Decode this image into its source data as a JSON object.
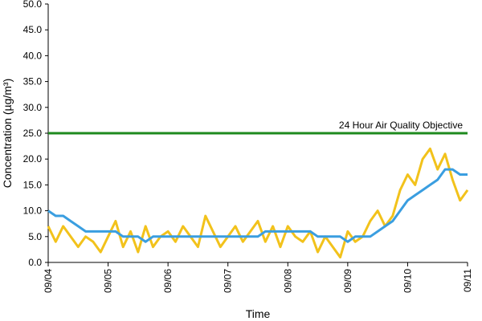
{
  "chart_data": {
    "type": "line",
    "y_label": "Concentration (µg/m³)",
    "x_label": "Time",
    "categories": [
      "09/04",
      null,
      null,
      null,
      null,
      null,
      null,
      null,
      "09/05",
      null,
      null,
      null,
      null,
      null,
      null,
      null,
      "09/06",
      null,
      null,
      null,
      null,
      null,
      null,
      null,
      "09/07",
      null,
      null,
      null,
      null,
      null,
      null,
      null,
      "09/08",
      null,
      null,
      null,
      null,
      null,
      null,
      null,
      "09/09",
      null,
      null,
      null,
      null,
      null,
      null,
      null,
      "09/10",
      null,
      null,
      null,
      null,
      null,
      null,
      null,
      "09/11"
    ],
    "series": [
      {
        "color": "#f2c21b",
        "values": [
          7,
          4,
          7,
          5,
          3,
          5,
          4,
          2,
          5,
          8,
          3,
          6,
          2,
          7,
          3,
          5,
          6,
          4,
          7,
          5,
          3,
          9,
          6,
          3,
          5,
          7,
          4,
          6,
          8,
          4,
          7,
          3,
          7,
          5,
          4,
          6,
          2,
          5,
          3,
          1,
          6,
          4,
          5,
          8,
          10,
          7,
          9,
          14,
          17,
          15,
          20,
          22,
          18,
          21,
          16,
          12,
          14
        ]
      },
      {
        "color": "#3a9ee0",
        "values": [
          10,
          9,
          9,
          8,
          7,
          6,
          6,
          6,
          6,
          6,
          5,
          5,
          5,
          4,
          5,
          5,
          5,
          5,
          5,
          5,
          5,
          5,
          5,
          5,
          5,
          5,
          5,
          5,
          5,
          6,
          6,
          6,
          6,
          6,
          6,
          6,
          5,
          5,
          5,
          5,
          4,
          5,
          5,
          5,
          6,
          7,
          8,
          10,
          12,
          13,
          14,
          15,
          16,
          18,
          18,
          17,
          17
        ]
      }
    ],
    "reference_line": {
      "value": 25,
      "label": "24 Hour Air Quality Objective",
      "color": "#1e8a1e"
    },
    "ylim": [
      0,
      50
    ],
    "yticks": [
      {
        "value": 0,
        "label": "0.0"
      },
      {
        "value": 5,
        "label": "5.0"
      },
      {
        "value": 10,
        "label": "10.0"
      },
      {
        "value": 15,
        "label": "15.0"
      },
      {
        "value": 20,
        "label": "20.0"
      },
      {
        "value": 25,
        "label": "25.0"
      },
      {
        "value": 30,
        "label": "30.0"
      },
      {
        "value": 35,
        "label": "35.0"
      },
      {
        "value": 40,
        "label": "40.0"
      },
      {
        "value": 45,
        "label": "45.0"
      },
      {
        "value": 50,
        "label": "50.0"
      }
    ],
    "grid": false
  }
}
